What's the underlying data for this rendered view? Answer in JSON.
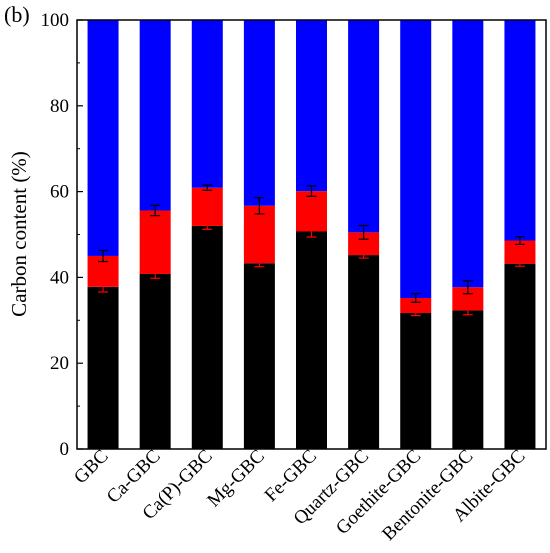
{
  "panel_label": "(b)",
  "chart_data": {
    "type": "bar",
    "stacked": true,
    "ylabel": "Carbon content (%)",
    "xlabel": "",
    "ylim": [
      0,
      100
    ],
    "yticks": [
      0,
      20,
      40,
      60,
      80,
      100
    ],
    "categories": [
      "GBC",
      "Ca-GBC",
      "Ca(P)-GBC",
      "Mg-GBC",
      "Fe-GBC",
      "Quartz-GBC",
      "Goethite-GBC",
      "Bentonite-GBC",
      "Albite-GBC"
    ],
    "series": [
      {
        "color": "#000000",
        "values": [
          37.8,
          40.8,
          52.0,
          43.3,
          50.7,
          45.2,
          31.7,
          32.3,
          43.2
        ],
        "errors": [
          1.2,
          1.0,
          0.8,
          0.8,
          1.3,
          0.7,
          0.6,
          1.0,
          0.6
        ]
      },
      {
        "color": "#ff0000",
        "values": [
          7.2,
          14.8,
          8.9,
          13.4,
          9.4,
          5.3,
          3.5,
          5.4,
          5.4
        ],
        "errors": [
          1.3,
          1.2,
          0.6,
          1.9,
          1.2,
          1.6,
          1.0,
          1.5,
          0.9
        ]
      },
      {
        "color": "#0000ff",
        "values": [
          55.0,
          44.4,
          39.1,
          43.3,
          39.9,
          49.5,
          64.8,
          62.3,
          51.4
        ]
      }
    ],
    "grid": false,
    "legend": "none"
  }
}
